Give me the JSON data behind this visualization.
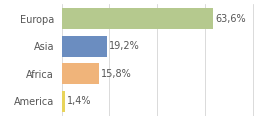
{
  "categories": [
    "Europa",
    "Asia",
    "Africa",
    "America"
  ],
  "values": [
    63.6,
    19.2,
    15.8,
    1.4
  ],
  "labels": [
    "63,6%",
    "19,2%",
    "15,8%",
    "1,4%"
  ],
  "bar_colors": [
    "#b5c98e",
    "#6b8dc0",
    "#f0b47a",
    "#e8d45a"
  ],
  "background_color": "#ffffff",
  "label_fontsize": 7,
  "category_fontsize": 7,
  "bar_height": 0.75,
  "xlim": [
    0,
    88
  ],
  "grid_lines": [
    0,
    20,
    40,
    60,
    80
  ],
  "grid_color": "#cccccc",
  "text_color": "#555555"
}
